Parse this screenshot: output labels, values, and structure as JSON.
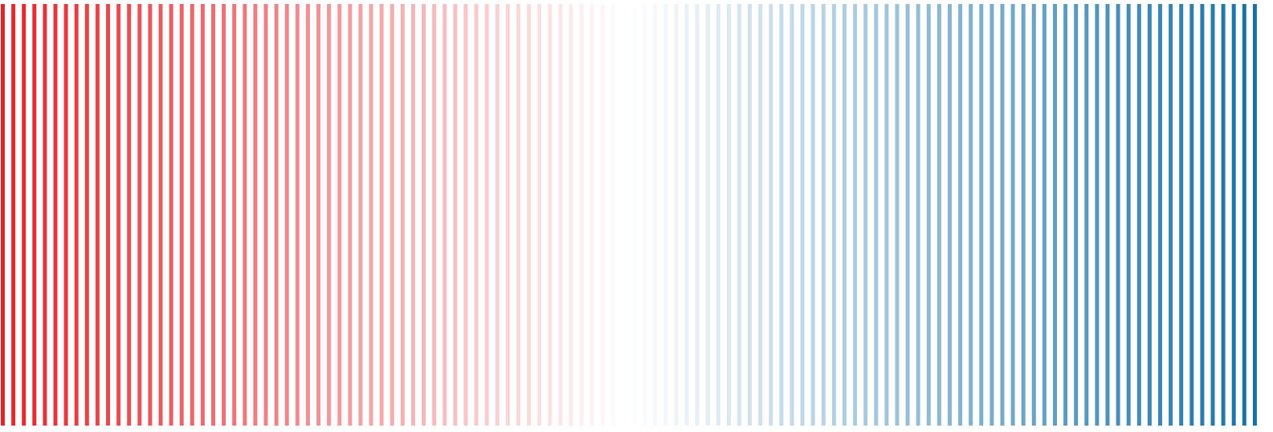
{
  "palette": {
    "start_color": "#e3242b",
    "mid_color": "#ffffff",
    "end_color": "#1770a8"
  },
  "stripes": {
    "count": 120
  }
}
